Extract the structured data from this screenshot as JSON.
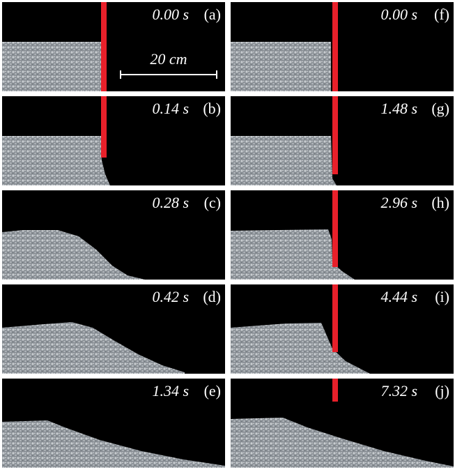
{
  "panels": [
    {
      "time": "0.00 s",
      "label": "(a)"
    },
    {
      "time": "0.14 s",
      "label": "(b)"
    },
    {
      "time": "0.28 s",
      "label": "(c)"
    },
    {
      "time": "0.42 s",
      "label": "(d)"
    },
    {
      "time": "1.34 s",
      "label": "(e)"
    },
    {
      "time": "0.00 s",
      "label": "(f)"
    },
    {
      "time": "1.48 s",
      "label": "(g)"
    },
    {
      "time": "2.96 s",
      "label": "(h)"
    },
    {
      "time": "4.44 s",
      "label": "(i)"
    },
    {
      "time": "7.32 s",
      "label": "(j)"
    }
  ],
  "scale_bar": "20 cm"
}
